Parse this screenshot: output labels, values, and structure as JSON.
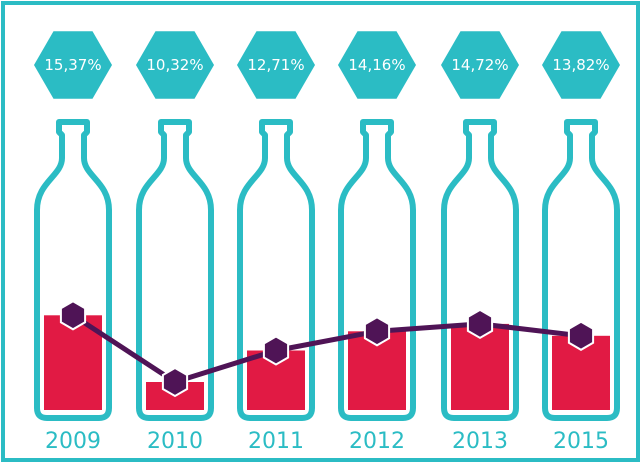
{
  "colors": {
    "frame": "#2bbcc4",
    "hexagon": "#2bbcc4",
    "bottle_outline": "#2bbcc4",
    "bar_fill": "#e11a44",
    "line": "#4f1456",
    "marker": "#4f1456",
    "label_text": "#ffffff",
    "year_text": "#2bbcc4"
  },
  "chart_data": {
    "type": "bar",
    "title": "",
    "xlabel": "",
    "ylabel": "",
    "categories": [
      "2009",
      "2010",
      "2011",
      "2012",
      "2013",
      "2015"
    ],
    "labels": [
      "15,37%",
      "10,32%",
      "12,71%",
      "14,16%",
      "14,72%",
      "13,82%"
    ],
    "values": [
      15.37,
      10.32,
      12.71,
      14.16,
      14.72,
      13.82
    ],
    "bar_style": "bottle-fill",
    "overlay": "line-with-hexagon-markers",
    "grid": false,
    "legend": "none"
  }
}
